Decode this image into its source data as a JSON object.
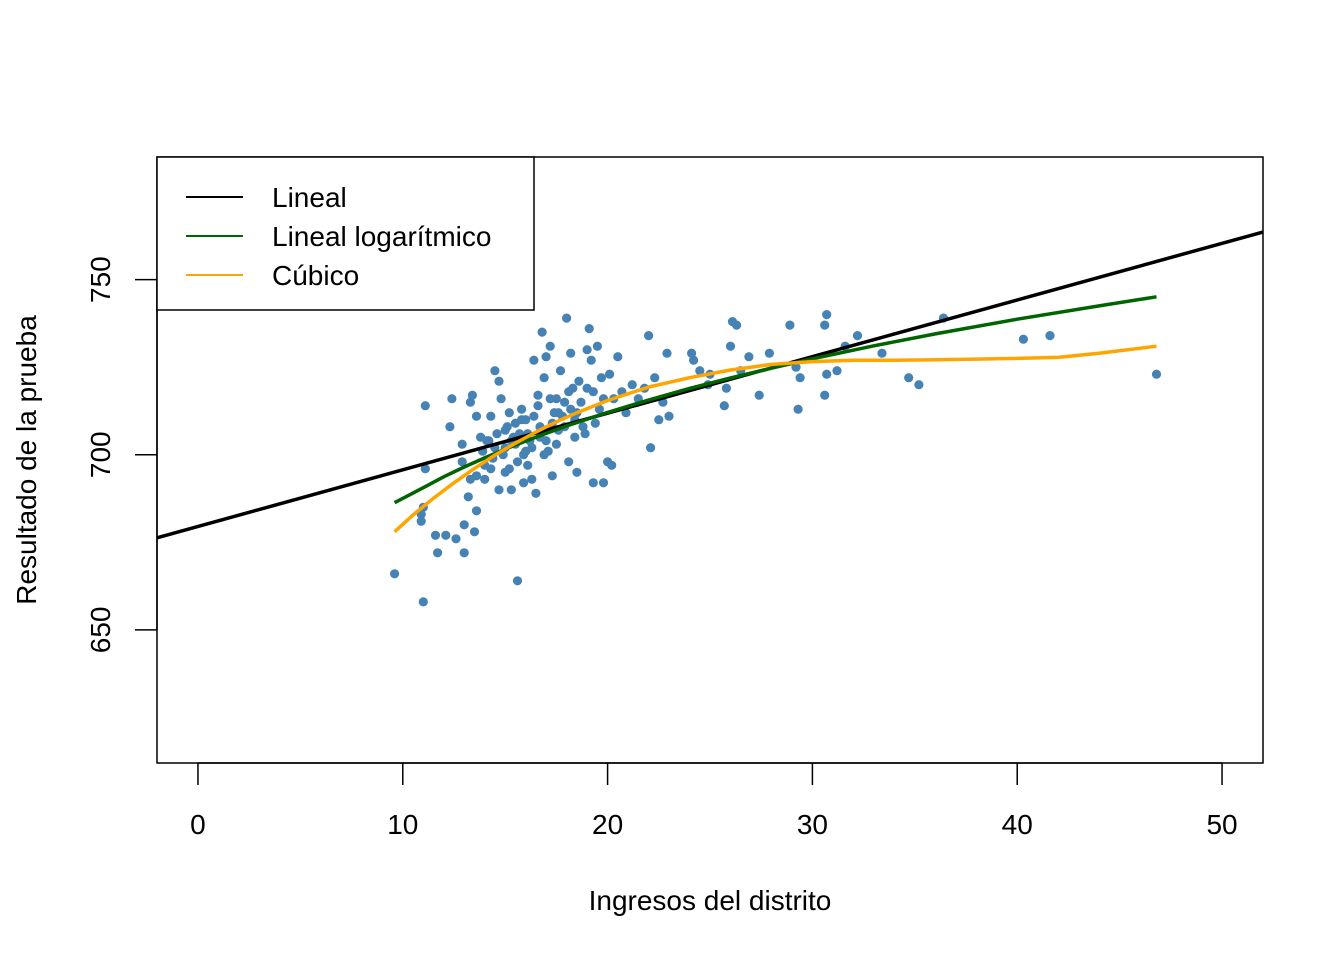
{
  "chart_data": {
    "type": "scatter",
    "title": "",
    "xlabel": "Ingresos del distrito",
    "ylabel": "Resultado de la prueba",
    "xlim": [
      -2,
      52
    ],
    "ylim": [
      612,
      785
    ],
    "xticks": [
      0,
      10,
      20,
      30,
      40,
      50
    ],
    "yticks": [
      650,
      700,
      750
    ],
    "xtick_labels": [
      "0",
      "10",
      "20",
      "30",
      "40",
      "50"
    ],
    "ytick_labels": [
      "650",
      "700",
      "750"
    ],
    "grid": false,
    "legend_position": "top-left",
    "point_color": "#4682b4",
    "points": [
      [
        9.6,
        666
      ],
      [
        11.0,
        658
      ],
      [
        15.6,
        664
      ],
      [
        10.9,
        681
      ],
      [
        10.9,
        683
      ],
      [
        11.0,
        685
      ],
      [
        11.1,
        714
      ],
      [
        11.1,
        696
      ],
      [
        11.6,
        677
      ],
      [
        11.7,
        672
      ],
      [
        12.1,
        677
      ],
      [
        12.4,
        716
      ],
      [
        12.3,
        708
      ],
      [
        12.6,
        676
      ],
      [
        12.9,
        703
      ],
      [
        13.0,
        672
      ],
      [
        13.0,
        680
      ],
      [
        13.2,
        688
      ],
      [
        13.3,
        715
      ],
      [
        13.4,
        717
      ],
      [
        13.5,
        678
      ],
      [
        13.6,
        684
      ],
      [
        13.6,
        694
      ],
      [
        13.8,
        705
      ],
      [
        14.0,
        693
      ],
      [
        14.1,
        704
      ],
      [
        14.3,
        711
      ],
      [
        14.4,
        699
      ],
      [
        14.5,
        724
      ],
      [
        14.6,
        706
      ],
      [
        14.7,
        721
      ],
      [
        14.7,
        690
      ],
      [
        14.8,
        716
      ],
      [
        15.0,
        702
      ],
      [
        15.0,
        695
      ],
      [
        15.1,
        708
      ],
      [
        15.2,
        712
      ],
      [
        15.3,
        690
      ],
      [
        15.4,
        705
      ],
      [
        15.5,
        709
      ],
      [
        15.6,
        698
      ],
      [
        15.7,
        706
      ],
      [
        15.8,
        713
      ],
      [
        15.9,
        700
      ],
      [
        16.0,
        710
      ],
      [
        16.1,
        697
      ],
      [
        16.2,
        704
      ],
      [
        16.3,
        702
      ],
      [
        16.4,
        727
      ],
      [
        16.5,
        689
      ],
      [
        16.6,
        717
      ],
      [
        16.7,
        705
      ],
      [
        16.8,
        735
      ],
      [
        16.9,
        722
      ],
      [
        17.0,
        728
      ],
      [
        17.1,
        701
      ],
      [
        17.2,
        731
      ],
      [
        17.3,
        694
      ],
      [
        17.4,
        712
      ],
      [
        17.5,
        716
      ],
      [
        17.6,
        707
      ],
      [
        17.7,
        724
      ],
      [
        17.9,
        715
      ],
      [
        18.0,
        739
      ],
      [
        18.1,
        698
      ],
      [
        18.2,
        729
      ],
      [
        18.3,
        719
      ],
      [
        18.4,
        710
      ],
      [
        18.5,
        695
      ],
      [
        18.6,
        721
      ],
      [
        18.8,
        708
      ],
      [
        19.0,
        730
      ],
      [
        19.1,
        736
      ],
      [
        19.2,
        727
      ],
      [
        19.3,
        692
      ],
      [
        19.5,
        731
      ],
      [
        19.6,
        713
      ],
      [
        19.8,
        692
      ],
      [
        20.0,
        698
      ],
      [
        20.1,
        723
      ],
      [
        20.2,
        697
      ],
      [
        20.3,
        716
      ],
      [
        20.5,
        728
      ],
      [
        20.7,
        718
      ],
      [
        20.9,
        712
      ],
      [
        21.2,
        720
      ],
      [
        21.5,
        716
      ],
      [
        21.8,
        719
      ],
      [
        22.0,
        734
      ],
      [
        22.1,
        702
      ],
      [
        22.3,
        722
      ],
      [
        22.5,
        710
      ],
      [
        22.7,
        715
      ],
      [
        22.9,
        729
      ],
      [
        23.0,
        711
      ],
      [
        24.1,
        729
      ],
      [
        24.2,
        727
      ],
      [
        24.5,
        724
      ],
      [
        24.9,
        720
      ],
      [
        25.0,
        723
      ],
      [
        25.7,
        714
      ],
      [
        25.8,
        719
      ],
      [
        26.0,
        731
      ],
      [
        26.1,
        738
      ],
      [
        26.3,
        737
      ],
      [
        26.5,
        724
      ],
      [
        26.9,
        728
      ],
      [
        27.4,
        717
      ],
      [
        27.9,
        729
      ],
      [
        28.9,
        737
      ],
      [
        29.2,
        725
      ],
      [
        29.3,
        713
      ],
      [
        29.4,
        722
      ],
      [
        30.6,
        737
      ],
      [
        30.6,
        717
      ],
      [
        30.7,
        740
      ],
      [
        30.7,
        723
      ],
      [
        31.2,
        724
      ],
      [
        31.6,
        731
      ],
      [
        32.2,
        734
      ],
      [
        33.4,
        729
      ],
      [
        34.7,
        722
      ],
      [
        35.2,
        720
      ],
      [
        36.4,
        739
      ],
      [
        40.3,
        733
      ],
      [
        41.6,
        734
      ],
      [
        46.8,
        723
      ],
      [
        15.0,
        707
      ],
      [
        15.3,
        704
      ],
      [
        15.5,
        703
      ],
      [
        15.8,
        710
      ],
      [
        16.1,
        706
      ],
      [
        16.4,
        711
      ],
      [
        16.7,
        708
      ],
      [
        17.0,
        704
      ],
      [
        17.3,
        709
      ],
      [
        17.6,
        712
      ],
      [
        17.9,
        708
      ],
      [
        18.2,
        713
      ],
      [
        18.5,
        712
      ],
      [
        16.0,
        701
      ],
      [
        16.6,
        714
      ],
      [
        17.2,
        716
      ],
      [
        17.8,
        711
      ],
      [
        18.4,
        705
      ],
      [
        19.0,
        719
      ],
      [
        19.4,
        709
      ],
      [
        19.7,
        722
      ],
      [
        15.2,
        696
      ],
      [
        15.9,
        692
      ],
      [
        16.3,
        693
      ],
      [
        16.9,
        700
      ],
      [
        17.5,
        703
      ],
      [
        18.1,
        718
      ],
      [
        18.7,
        715
      ],
      [
        19.3,
        718
      ],
      [
        14.2,
        704
      ],
      [
        14.5,
        702
      ],
      [
        14.9,
        700
      ],
      [
        13.9,
        701
      ],
      [
        13.3,
        693
      ],
      [
        12.9,
        698
      ],
      [
        14.3,
        696
      ],
      [
        14.0,
        697
      ],
      [
        13.6,
        711
      ],
      [
        18.9,
        706
      ],
      [
        19.8,
        716
      ]
    ],
    "series": [
      {
        "name": "Lineal",
        "color": "#000000",
        "x": [
          -2,
          52
        ],
        "y": [
          676.3,
          763.6
        ]
      },
      {
        "name": "Lineal logarítmico",
        "color": "#006400",
        "x": [
          9.6,
          11,
          12,
          13,
          14,
          15,
          16,
          17,
          18,
          20,
          22,
          24,
          26,
          28,
          30,
          33,
          36,
          40,
          44,
          46.8
        ],
        "y": [
          686.3,
          690.6,
          693.7,
          696.5,
          699.1,
          701.6,
          703.9,
          706.1,
          708.2,
          712.1,
          715.6,
          718.9,
          721.9,
          724.7,
          727.4,
          731.1,
          734.5,
          738.7,
          742.5,
          745.1
        ]
      },
      {
        "name": "Cúbico",
        "color": "#ffa500",
        "x": [
          9.6,
          10.5,
          11.5,
          12.5,
          13.5,
          14.5,
          15.5,
          16.5,
          17.5,
          18.5,
          20,
          22,
          24,
          26,
          28,
          30,
          32,
          34,
          36,
          38,
          40,
          42,
          44,
          46.8
        ],
        "y": [
          678.0,
          682.8,
          687.6,
          692.0,
          696.1,
          699.9,
          703.3,
          706.5,
          709.4,
          712.0,
          715.5,
          719.3,
          722.0,
          724.2,
          725.8,
          726.6,
          727.0,
          727.0,
          727.1,
          727.3,
          727.5,
          727.8,
          729.0,
          731.0
        ]
      }
    ]
  }
}
